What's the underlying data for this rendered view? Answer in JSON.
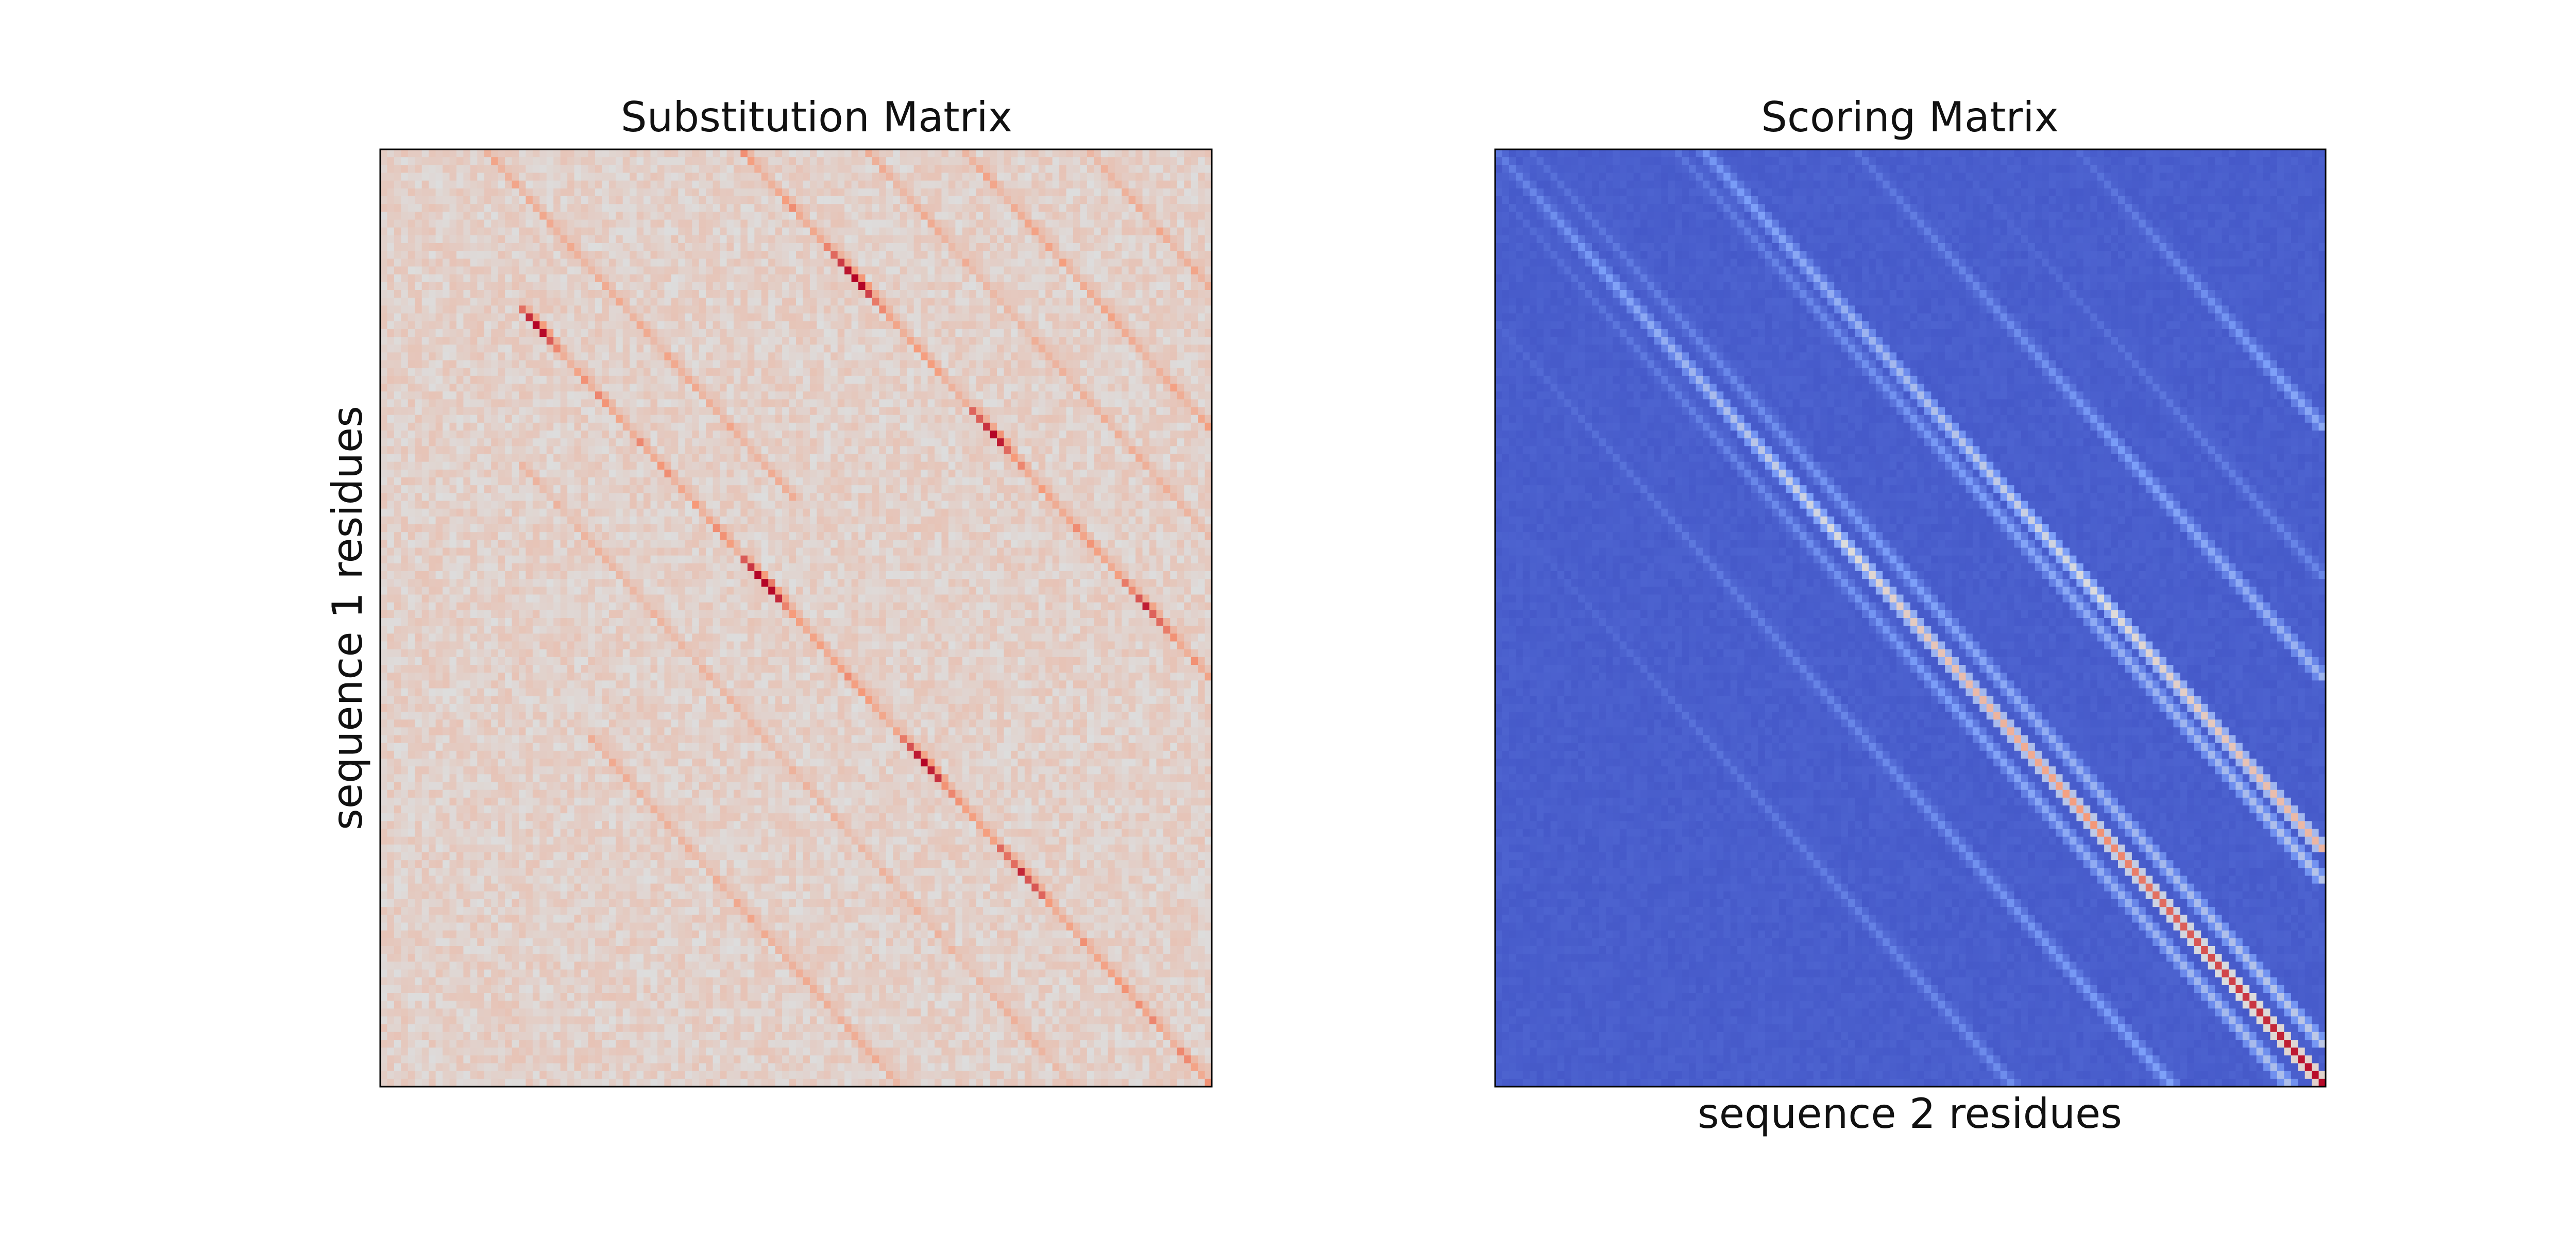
{
  "chart_data": [
    {
      "type": "heatmap",
      "title": "Substitution Matrix",
      "xlabel": "",
      "ylabel": "sequence 1 residues",
      "colormap": "coolwarm",
      "rows": 120,
      "cols": 120,
      "xticks": [],
      "yticks": [],
      "background_level": 0.55,
      "diagonal_bands": [
        {
          "offset": 0,
          "row_range": [
            20,
            120
          ],
          "strength": 0.2,
          "peaks": [
            [
              22,
              0.28
            ],
            [
              55,
              0.4
            ],
            [
              78,
              0.34
            ],
            [
              92,
              0.22
            ]
          ]
        },
        {
          "offset": 52,
          "row_range": [
            0,
            95
          ],
          "strength": 0.2,
          "peaks": [
            [
              16,
              0.38
            ],
            [
              36,
              0.3
            ],
            [
              58,
              0.22
            ]
          ]
        },
        {
          "offset": 84,
          "row_range": [
            0,
            60
          ],
          "strength": 0.16,
          "peaks": [
            [
              52,
              0.2
            ]
          ]
        },
        {
          "offset": 15,
          "row_range": [
            0,
            45
          ],
          "strength": 0.14,
          "peaks": []
        },
        {
          "offset": -45,
          "row_range": [
            75,
            120
          ],
          "strength": 0.14,
          "peaks": []
        },
        {
          "offset": 102,
          "row_range": [
            0,
            30
          ],
          "strength": 0.14,
          "peaks": []
        },
        {
          "offset": 70,
          "row_range": [
            0,
            50
          ],
          "strength": 0.12,
          "peaks": []
        },
        {
          "offset": -20,
          "row_range": [
            40,
            120
          ],
          "strength": 0.1,
          "peaks": []
        }
      ]
    },
    {
      "type": "heatmap",
      "title": "Scoring Matrix",
      "xlabel": "sequence 2 residues",
      "ylabel": "",
      "colormap": "coolwarm",
      "rows": 120,
      "cols": 120,
      "xticks": [],
      "yticks": [],
      "background_level": 0.04,
      "diagonal_bands": [
        {
          "offset": 0,
          "row_range": [
            0,
            120
          ],
          "start_level": 0.14,
          "end_level": 1.0
        },
        {
          "offset": 30,
          "row_range": [
            0,
            90
          ],
          "start_level": 0.22,
          "end_level": 0.66
        },
        {
          "offset": 26,
          "row_range": [
            0,
            94
          ],
          "start_level": 0.12,
          "end_level": 0.4
        },
        {
          "offset": 5,
          "row_range": [
            0,
            115
          ],
          "start_level": 0.1,
          "end_level": 0.42
        },
        {
          "offset": -5,
          "row_range": [
            5,
            120
          ],
          "start_level": 0.08,
          "end_level": 0.38
        },
        {
          "offset": 52,
          "row_range": [
            0,
            68
          ],
          "start_level": 0.12,
          "end_level": 0.34
        },
        {
          "offset": 84,
          "row_range": [
            0,
            36
          ],
          "start_level": 0.1,
          "end_level": 0.3
        },
        {
          "offset": -22,
          "row_range": [
            22,
            120
          ],
          "start_level": 0.08,
          "end_level": 0.26
        },
        {
          "offset": -45,
          "row_range": [
            45,
            120
          ],
          "start_level": 0.06,
          "end_level": 0.2
        },
        {
          "offset": 65,
          "row_range": [
            0,
            55
          ],
          "start_level": 0.06,
          "end_level": 0.18
        }
      ]
    }
  ]
}
